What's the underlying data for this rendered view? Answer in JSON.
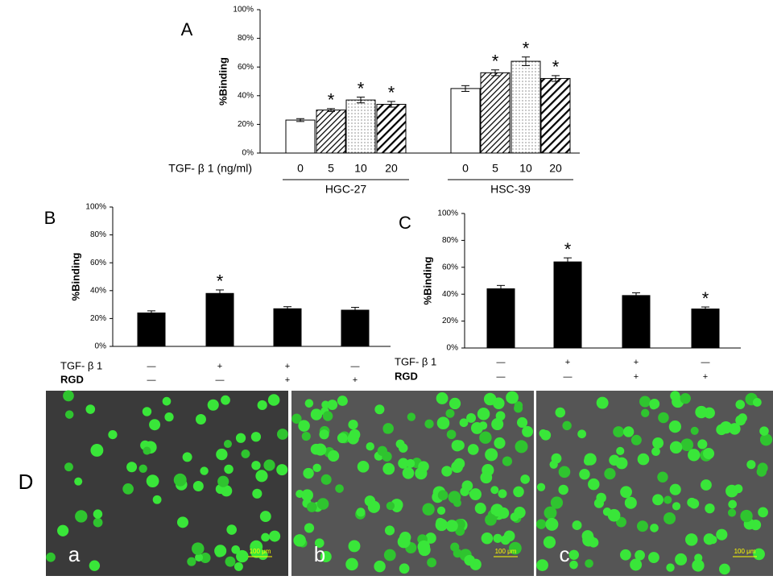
{
  "chart_data": [
    {
      "type": "bar",
      "panel": "A",
      "ylabel": "%Binding",
      "xlabel": "TGF- β 1 (ng/ml)",
      "ylim": [
        0,
        100
      ],
      "yticks": [
        {
          "value": 0,
          "label": "0%"
        },
        {
          "value": 20,
          "label": "20%"
        },
        {
          "value": 40,
          "label": "40%"
        },
        {
          "value": 60,
          "label": "60%"
        },
        {
          "value": 80,
          "label": "80%"
        },
        {
          "value": 100,
          "label": "100%"
        }
      ],
      "patterns": [
        "none",
        "hatch",
        "dots",
        "bold-hatch"
      ],
      "groups": [
        {
          "name": "HGC-27",
          "categories": [
            "0",
            "5",
            "10",
            "20"
          ],
          "values": [
            23,
            30,
            37,
            34
          ],
          "errors": [
            1,
            1,
            2,
            2
          ],
          "annotations": [
            null,
            "*",
            "*",
            "*"
          ]
        },
        {
          "name": "HSC-39",
          "categories": [
            "0",
            "5",
            "10",
            "20"
          ],
          "values": [
            45,
            56,
            64,
            52
          ],
          "errors": [
            2,
            2,
            3,
            2
          ],
          "annotations": [
            null,
            "*",
            "*",
            "*"
          ]
        }
      ]
    },
    {
      "type": "bar",
      "panel": "B",
      "ylabel": "%Binding",
      "color": "#000000",
      "ylim": [
        0,
        100
      ],
      "yticks": [
        {
          "value": 0,
          "label": "0%"
        },
        {
          "value": 20,
          "label": "20%"
        },
        {
          "value": 40,
          "label": "40%"
        },
        {
          "value": 60,
          "label": "60%"
        },
        {
          "value": 80,
          "label": "80%"
        },
        {
          "value": 100,
          "label": "100%"
        }
      ],
      "row_labels": [
        "TGF- β 1",
        "RGD"
      ],
      "rows": [
        [
          "—",
          "+",
          "+",
          "—"
        ],
        [
          "—",
          "—",
          "+",
          "+"
        ]
      ],
      "values": [
        24,
        38,
        27,
        26
      ],
      "errors": [
        1.5,
        2.5,
        1.5,
        2
      ],
      "annotations": [
        null,
        "*",
        null,
        null
      ]
    },
    {
      "type": "bar",
      "panel": "C",
      "ylabel": "%Binding",
      "color": "#000000",
      "ylim": [
        0,
        100
      ],
      "yticks": [
        {
          "value": 0,
          "label": "0%"
        },
        {
          "value": 20,
          "label": "20%"
        },
        {
          "value": 40,
          "label": "40%"
        },
        {
          "value": 60,
          "label": "60%"
        },
        {
          "value": 80,
          "label": "80%"
        },
        {
          "value": 100,
          "label": "100%"
        }
      ],
      "row_labels": [
        "TGF- β 1",
        "RGD"
      ],
      "rows": [
        [
          "—",
          "+",
          "+",
          "—"
        ],
        [
          "—",
          "—",
          "+",
          "+"
        ]
      ],
      "values": [
        44,
        64,
        39,
        29
      ],
      "errors": [
        2.5,
        3,
        2,
        1.5
      ],
      "annotations": [
        null,
        "*",
        null,
        "*"
      ]
    }
  ],
  "panel_d": {
    "label": "D",
    "images": [
      {
        "label": "a",
        "scale_bar": "100 μm"
      },
      {
        "label": "b",
        "scale_bar": "100 μm"
      },
      {
        "label": "c",
        "scale_bar": "100 μm"
      }
    ]
  }
}
